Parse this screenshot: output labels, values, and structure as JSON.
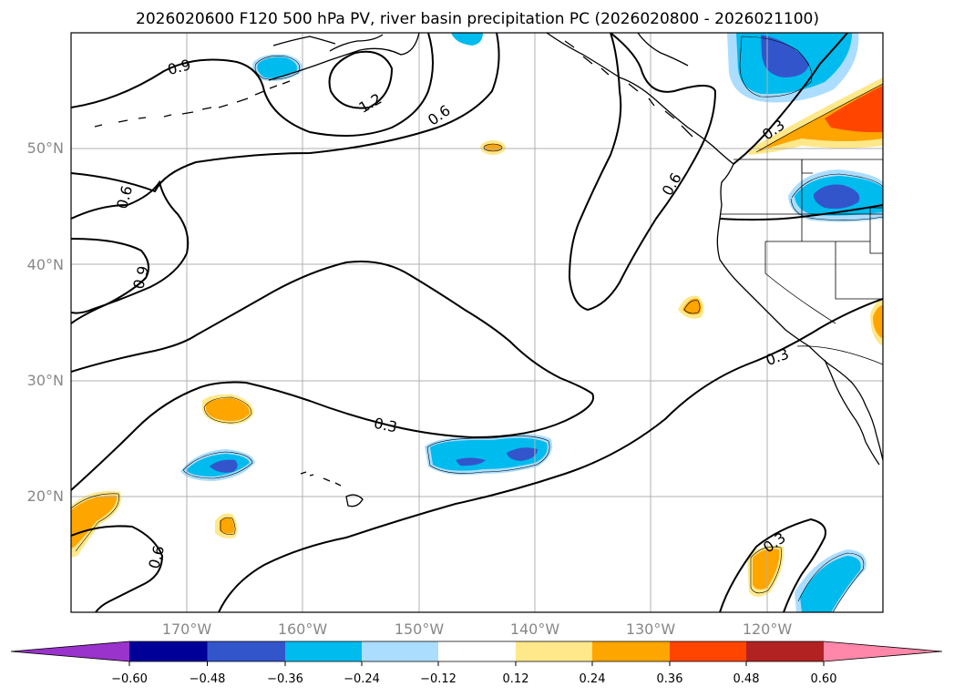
{
  "title": "2026020600 F120 500 hPa PV, river basin precipitation PC (2026020800 - 2026021100)",
  "lat_labels": [
    "50°N",
    "40°N",
    "30°N",
    "20°N"
  ],
  "lon_labels": [
    "170°W",
    "160°W",
    "150°W",
    "140°W",
    "130°W",
    "120°W"
  ],
  "contour_labels": {
    "c09_top": "0.9",
    "c12": "1.2",
    "c06_mid": "0.6",
    "c06_left": "0.6",
    "c09_left": "0.9",
    "c06_right": "0.6",
    "c03_ne": "0.3",
    "c03_mid": "0.3",
    "c03_right": "0.3",
    "c03_se": "0.3",
    "c06_sw": "0.6"
  },
  "colorbar": {
    "ticks": [
      "−0.60",
      "−0.48",
      "−0.36",
      "−0.24",
      "−0.12",
      "0.12",
      "0.24",
      "0.36",
      "0.48",
      "0.60"
    ],
    "colors": [
      "#9933cc",
      "#000099",
      "#3355cc",
      "#00bbee",
      "#aaddff",
      "#ffffff",
      "#ffe88a",
      "#ffa500",
      "#ff4500",
      "#b22222",
      "#ff88aa"
    ]
  },
  "map": {
    "projection": "PlateCarree",
    "lon_range": [
      "180°W",
      "110°W"
    ],
    "lat_range": [
      "10°N",
      "60°N"
    ],
    "pv_contour_levels": [
      0.3,
      0.6,
      0.9,
      1.2
    ]
  }
}
